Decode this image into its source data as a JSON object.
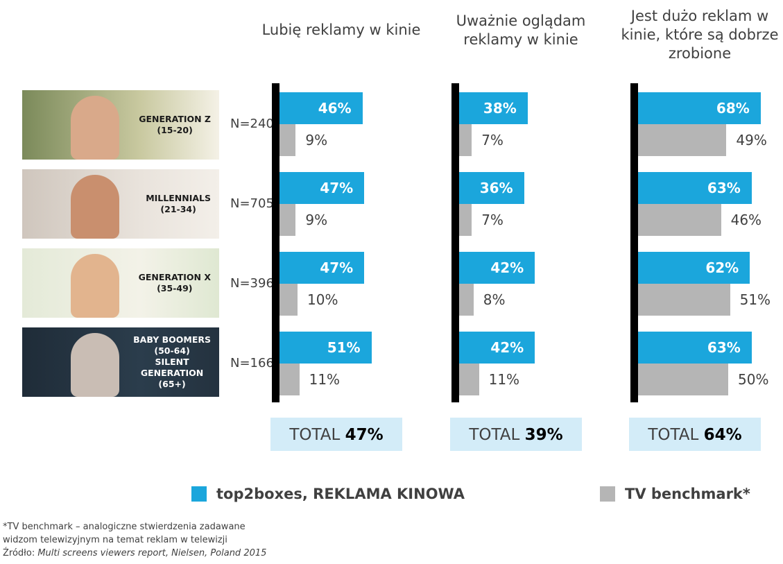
{
  "chart_data": {
    "type": "bar",
    "orientation": "horizontal",
    "panels": [
      {
        "title": "Lubię reklamy w kinie",
        "top2boxes": [
          46,
          47,
          47,
          51
        ],
        "tv": [
          9,
          9,
          10,
          11
        ],
        "total_label": "TOTAL",
        "total_value": "47%"
      },
      {
        "title": "Uważnie oglądam reklamy w kinie",
        "top2boxes": [
          38,
          36,
          42,
          42
        ],
        "tv": [
          7,
          7,
          8,
          11
        ],
        "total_label": "TOTAL",
        "total_value": "39%"
      },
      {
        "title": "Jest dużo reklam w kinie, które są dobrze zrobione",
        "top2boxes": [
          68,
          63,
          62,
          63
        ],
        "tv": [
          49,
          46,
          51,
          50
        ],
        "total_label": "TOTAL",
        "total_value": "64%"
      }
    ],
    "categories": [
      {
        "label": "GENERATION Z\n(15-20)",
        "n": "N=240"
      },
      {
        "label": "MILLENNIALS\n(21-34)",
        "n": "N=705"
      },
      {
        "label": "GENERATION X\n(35-49)",
        "n": "N=396"
      },
      {
        "label": "BABY BOOMERS\n(50-64)\nSILENT\nGENERATION\n(65+)",
        "n": "N=166"
      }
    ],
    "series": [
      {
        "name": "top2boxes, REKLAMA KINOWA",
        "color": "#1ba6dc"
      },
      {
        "name": "TV benchmark*",
        "color": "#b5b5b5"
      }
    ],
    "unit": "%",
    "xlim": [
      0,
      100
    ],
    "legend": "bottom"
  },
  "footnote": {
    "line1": "*TV benchmark – analogiczne stwierdzenia zadawane",
    "line2": "widzom telewizyjnym na temat reklam w telewizji",
    "source_label": "Źródło: ",
    "source": "Multi screens viewers report, Nielsen, Poland 2015"
  }
}
